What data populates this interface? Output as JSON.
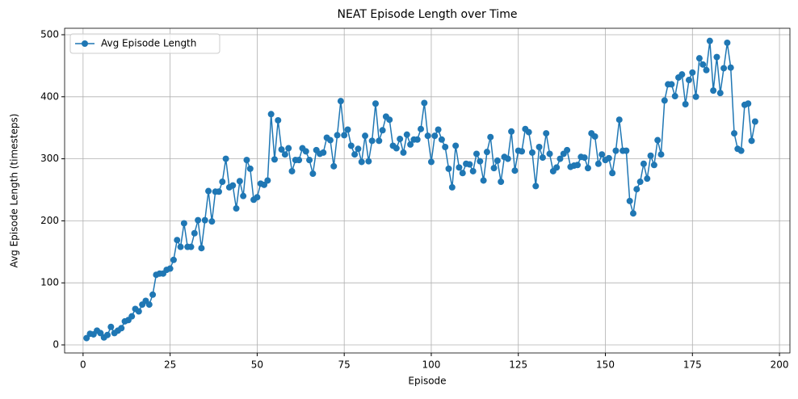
{
  "chart_data": {
    "type": "line",
    "title": "NEAT Episode Length over Time",
    "x_label": "Episode",
    "y_label": "Avg Episode Length (timesteps)",
    "x": [
      1,
      2,
      3,
      4,
      5,
      6,
      7,
      8,
      9,
      10,
      11,
      12,
      13,
      14,
      15,
      16,
      17,
      18,
      19,
      20,
      21,
      22,
      23,
      24,
      25,
      26,
      27,
      28,
      29,
      30,
      31,
      32,
      33,
      34,
      35,
      36,
      37,
      38,
      39,
      40,
      41,
      42,
      43,
      44,
      45,
      46,
      47,
      48,
      49,
      50,
      51,
      52,
      53,
      54,
      55,
      56,
      57,
      58,
      59,
      60,
      61,
      62,
      63,
      64,
      65,
      66,
      67,
      68,
      69,
      70,
      71,
      72,
      73,
      74,
      75,
      76,
      77,
      78,
      79,
      80,
      81,
      82,
      83,
      84,
      85,
      86,
      87,
      88,
      89,
      90,
      91,
      92,
      93,
      94,
      95,
      96,
      97,
      98,
      99,
      100,
      101,
      102,
      103,
      104,
      105,
      106,
      107,
      108,
      109,
      110,
      111,
      112,
      113,
      114,
      115,
      116,
      117,
      118,
      119,
      120,
      121,
      122,
      123,
      124,
      125,
      126,
      127,
      128,
      129,
      130,
      131,
      132,
      133,
      134,
      135,
      136,
      137,
      138,
      139,
      140,
      141,
      142,
      143,
      144,
      145,
      146,
      147,
      148,
      149,
      150,
      151,
      152,
      153,
      154,
      155,
      156,
      157,
      158,
      159,
      160,
      161,
      162,
      163,
      164,
      165,
      166,
      167,
      168,
      169,
      170,
      171,
      172,
      173,
      174,
      175,
      176,
      177,
      178,
      179,
      180,
      181,
      182,
      183,
      184,
      185,
      186,
      187,
      188,
      189,
      190,
      191,
      192,
      193
    ],
    "series": [
      {
        "name": "Avg Episode Length",
        "color": "#1f77b4",
        "values": [
          11,
          18,
          17,
          23,
          19,
          12,
          16,
          29,
          19,
          23,
          27,
          38,
          40,
          46,
          58,
          54,
          65,
          71,
          65,
          81,
          113,
          115,
          115,
          121,
          123,
          137,
          169,
          158,
          196,
          158,
          158,
          180,
          201,
          156,
          201,
          248,
          199,
          247,
          247,
          263,
          300,
          254,
          257,
          220,
          264,
          240,
          298,
          284,
          234,
          238,
          260,
          258,
          265,
          372,
          299,
          362,
          315,
          307,
          317,
          280,
          298,
          298,
          317,
          312,
          298,
          276,
          314,
          308,
          310,
          334,
          330,
          288,
          338,
          393,
          338,
          347,
          321,
          307,
          316,
          295,
          337,
          296,
          329,
          389,
          329,
          346,
          368,
          363,
          321,
          317,
          332,
          310,
          339,
          323,
          331,
          331,
          348,
          390,
          337,
          295,
          337,
          347,
          331,
          319,
          284,
          254,
          321,
          286,
          277,
          292,
          291,
          280,
          308,
          296,
          265,
          311,
          335,
          285,
          297,
          263,
          303,
          300,
          344,
          281,
          313,
          312,
          348,
          343,
          310,
          256,
          319,
          302,
          341,
          308,
          280,
          286,
          300,
          308,
          314,
          287,
          289,
          290,
          303,
          302,
          285,
          341,
          336,
          292,
          307,
          298,
          301,
          277,
          313,
          363,
          313,
          313,
          232,
          212,
          251,
          263,
          292,
          268,
          305,
          290,
          330,
          307,
          394,
          420,
          420,
          401,
          431,
          436,
          388,
          427,
          439,
          400,
          462,
          452,
          443,
          490,
          410,
          464,
          406,
          446,
          487,
          447,
          341,
          316,
          313,
          387,
          389,
          329,
          360
        ]
      }
    ],
    "xlim": [
      -5.3,
      203
    ],
    "ylim": [
      -13,
      510.4
    ],
    "xticks": [
      0,
      25,
      50,
      75,
      100,
      125,
      150,
      175,
      200
    ],
    "yticks": [
      0,
      100,
      200,
      300,
      400,
      500
    ],
    "grid": true,
    "legend": "upper-left"
  }
}
